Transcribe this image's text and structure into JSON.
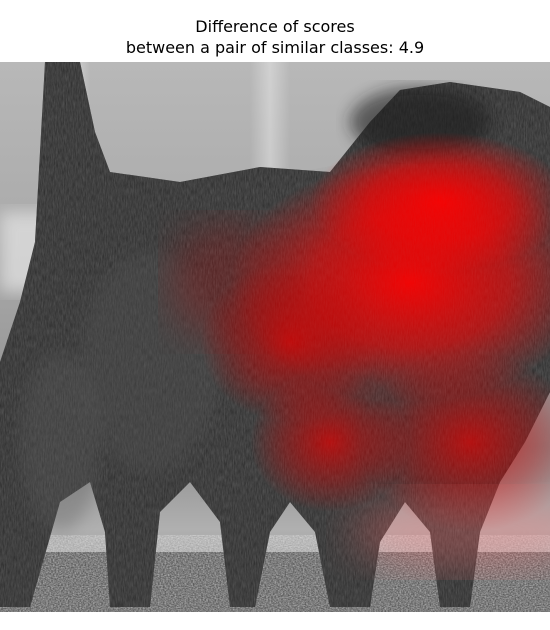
{
  "title": {
    "line1": "Difference of scores",
    "line2": "between a pair of similar classes: 4.9"
  },
  "image": {
    "subject": "dog-photo-icon",
    "photo_tone": "grayscale",
    "overlay_color": "#ff0000"
  }
}
